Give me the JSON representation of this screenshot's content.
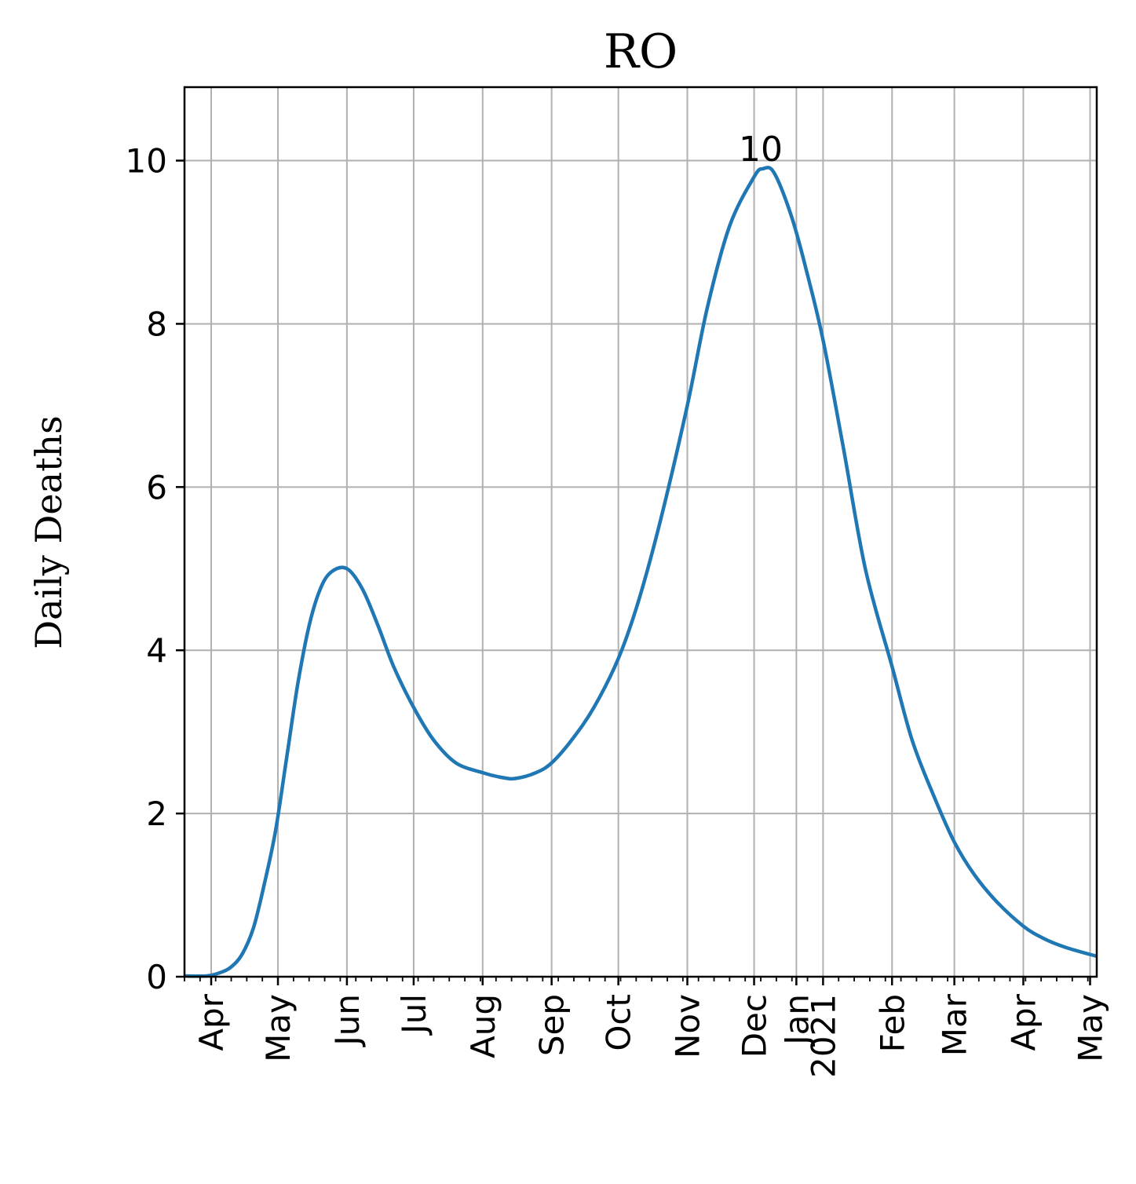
{
  "chart_data": {
    "type": "line",
    "title": "RO",
    "xlabel": "",
    "ylabel": "Daily Deaths",
    "xlim": [
      "2020-03-20",
      "2021-05-04"
    ],
    "ylim": [
      0,
      10.9
    ],
    "grid": true,
    "yticks": [
      0,
      2,
      4,
      6,
      8,
      10
    ],
    "xticks": [
      {
        "date": "2020-04-01",
        "label": "Apr"
      },
      {
        "date": "2020-05-01",
        "label": "May"
      },
      {
        "date": "2020-06-01",
        "label": "Jun"
      },
      {
        "date": "2020-07-01",
        "label": "Jul"
      },
      {
        "date": "2020-08-01",
        "label": "Aug"
      },
      {
        "date": "2020-09-01",
        "label": "Sep"
      },
      {
        "date": "2020-10-01",
        "label": "Oct"
      },
      {
        "date": "2020-11-01",
        "label": "Nov"
      },
      {
        "date": "2020-12-01",
        "label": "Dec"
      },
      {
        "date": "2020-12-20",
        "label": "Jan"
      },
      {
        "date": "2021-01-01",
        "label": "2021"
      },
      {
        "date": "2021-02-01",
        "label": "Feb"
      },
      {
        "date": "2021-03-01",
        "label": "Mar"
      },
      {
        "date": "2021-04-01",
        "label": "Apr"
      },
      {
        "date": "2021-05-01",
        "label": "May"
      }
    ],
    "series": [
      {
        "name": "",
        "color": "#1f77b4",
        "x": [
          "2020-03-20",
          "2020-03-30",
          "2020-04-05",
          "2020-04-10",
          "2020-04-15",
          "2020-04-20",
          "2020-04-25",
          "2020-04-30",
          "2020-05-05",
          "2020-05-10",
          "2020-05-15",
          "2020-05-20",
          "2020-05-25",
          "2020-06-01",
          "2020-06-08",
          "2020-06-15",
          "2020-06-22",
          "2020-07-01",
          "2020-07-10",
          "2020-07-20",
          "2020-08-01",
          "2020-08-10",
          "2020-08-16",
          "2020-08-25",
          "2020-09-01",
          "2020-09-10",
          "2020-09-20",
          "2020-10-01",
          "2020-10-10",
          "2020-10-20",
          "2020-11-01",
          "2020-11-10",
          "2020-11-20",
          "2020-12-01",
          "2020-12-05",
          "2020-12-10",
          "2020-12-18",
          "2020-12-25",
          "2021-01-01",
          "2021-01-10",
          "2021-01-20",
          "2021-02-01",
          "2021-02-10",
          "2021-02-20",
          "2021-03-01",
          "2021-03-10",
          "2021-03-20",
          "2021-04-01",
          "2021-04-10",
          "2021-04-20",
          "2021-05-04"
        ],
        "y": [
          0.01,
          0.01,
          0.05,
          0.12,
          0.28,
          0.6,
          1.15,
          1.8,
          2.7,
          3.6,
          4.3,
          4.75,
          4.96,
          5.0,
          4.75,
          4.3,
          3.8,
          3.3,
          2.9,
          2.62,
          2.5,
          2.44,
          2.43,
          2.5,
          2.62,
          2.9,
          3.3,
          3.9,
          4.6,
          5.6,
          7.0,
          8.2,
          9.2,
          9.8,
          9.9,
          9.85,
          9.3,
          8.6,
          7.8,
          6.5,
          5.0,
          3.8,
          2.9,
          2.2,
          1.65,
          1.25,
          0.92,
          0.62,
          0.47,
          0.36,
          0.25
        ]
      }
    ],
    "annotations": [
      {
        "date": "2020-12-04",
        "value": 9.9,
        "text": "10"
      }
    ]
  }
}
